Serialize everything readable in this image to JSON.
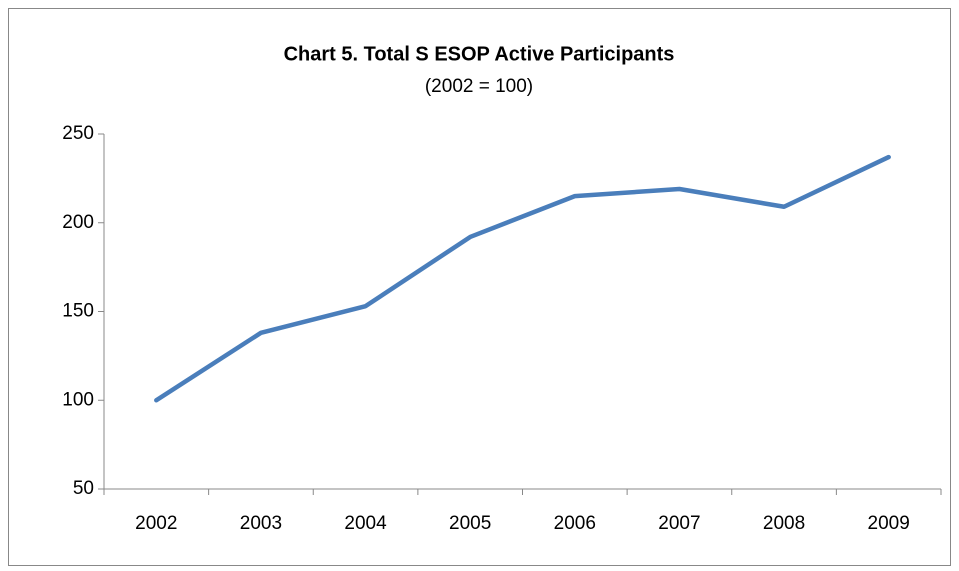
{
  "chart_data": {
    "type": "line",
    "title": "Chart 5. Total S ESOP Active Participants",
    "subtitle": "(2002 = 100)",
    "categories": [
      "2002",
      "2003",
      "2004",
      "2005",
      "2006",
      "2007",
      "2008",
      "2009"
    ],
    "values": [
      100,
      138,
      153,
      192,
      215,
      219,
      209,
      237
    ],
    "color": "#4a7ebb",
    "ylim": [
      50,
      250
    ],
    "yticks": [
      50,
      100,
      150,
      200,
      250
    ],
    "grid": false
  }
}
